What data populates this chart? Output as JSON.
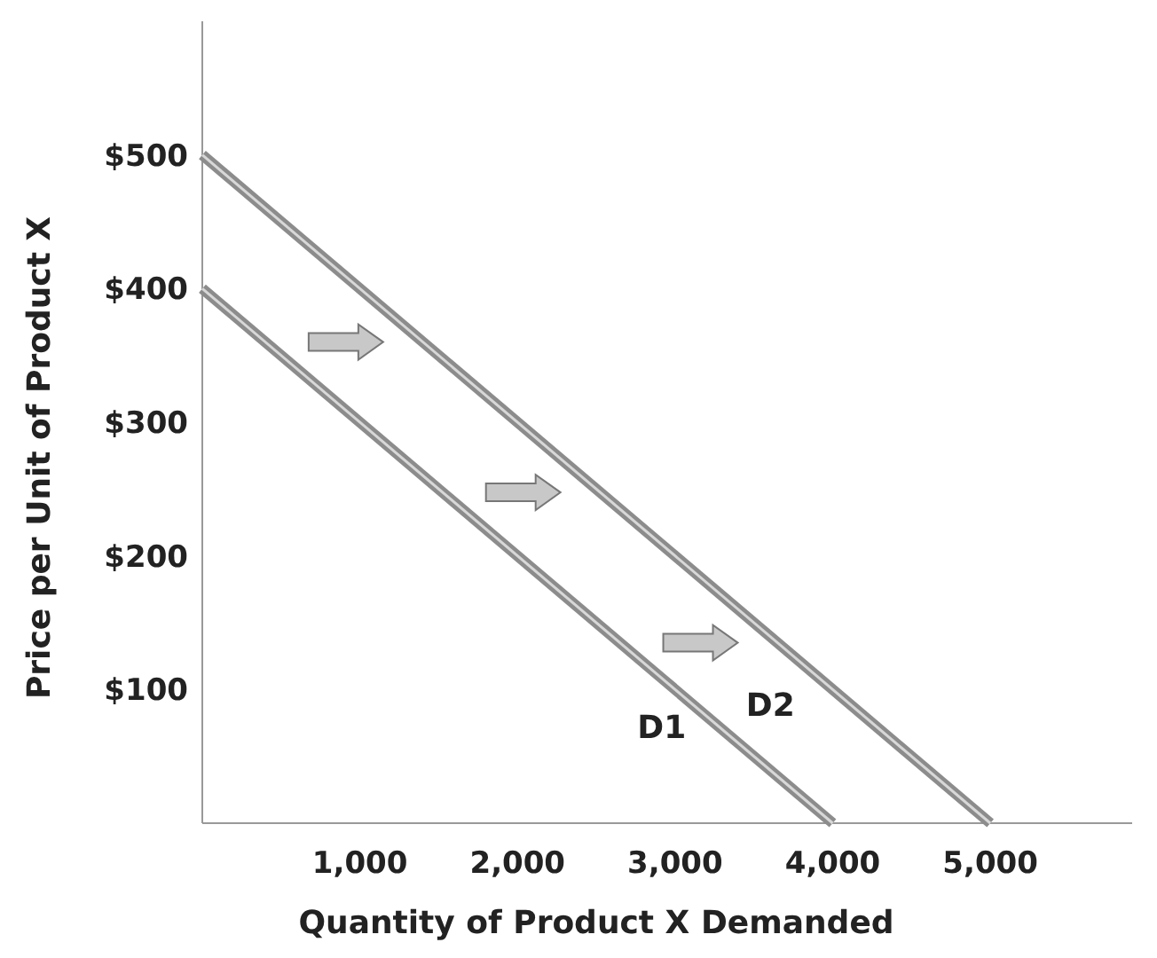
{
  "chart_data": {
    "type": "line",
    "xlabel": "Quantity of Product X Demanded",
    "ylabel": "Price per Unit of Product X",
    "xlim": [
      0,
      5900
    ],
    "ylim": [
      0,
      600
    ],
    "xticks": [
      {
        "value": 1000,
        "label": "1,000"
      },
      {
        "value": 2000,
        "label": "2,000"
      },
      {
        "value": 3000,
        "label": "3,000"
      },
      {
        "value": 4000,
        "label": "4,000"
      },
      {
        "value": 5000,
        "label": "5,000"
      }
    ],
    "yticks": [
      {
        "value": 100,
        "label": "$100"
      },
      {
        "value": 200,
        "label": "$200"
      },
      {
        "value": 300,
        "label": "$300"
      },
      {
        "value": 400,
        "label": "$400"
      },
      {
        "value": 500,
        "label": "$500"
      }
    ],
    "grid": false,
    "marker": "none",
    "line_style": "solid",
    "series": [
      {
        "name": "D1",
        "color": "#8c8c8c",
        "x": [
          0,
          4000
        ],
        "values": [
          400,
          0
        ]
      },
      {
        "name": "D2",
        "color": "#8c8c8c",
        "x": [
          0,
          5000
        ],
        "values": [
          500,
          0
        ]
      }
    ]
  }
}
